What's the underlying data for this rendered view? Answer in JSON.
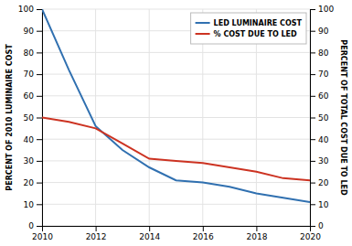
{
  "chart_data": {
    "type": "line",
    "x": [
      2010,
      2011,
      2012,
      2013,
      2014,
      2015,
      2016,
      2017,
      2018,
      2019,
      2020
    ],
    "series": [
      {
        "name": "LED LUMINAIRE COST",
        "color": "#3070b0",
        "values": [
          100,
          72,
          46,
          35,
          27,
          21,
          20,
          18,
          15,
          13,
          11
        ]
      },
      {
        "name": "% COST DUE TO LED",
        "color": "#cc3322",
        "axis": "y2",
        "values": [
          50,
          48,
          45,
          38,
          31,
          30,
          29,
          27,
          25,
          22,
          21
        ]
      }
    ],
    "xlim": [
      2010,
      2020
    ],
    "xticks": [
      2010,
      2012,
      2014,
      2016,
      2018,
      2020
    ],
    "ylim": [
      0,
      100
    ],
    "yticks": [
      0,
      10,
      20,
      30,
      40,
      50,
      60,
      70,
      80,
      90,
      100
    ],
    "y2lim": [
      0,
      100
    ],
    "y2ticks": [
      0,
      10,
      20,
      30,
      40,
      50,
      60,
      70,
      80,
      90,
      100
    ],
    "ylabel": "PERCENT OF 2010 LUMINAIRE COST",
    "y2label": "PERCENT OF TOTAL COST DUE TO LED",
    "grid": true,
    "legend": "upper right"
  }
}
